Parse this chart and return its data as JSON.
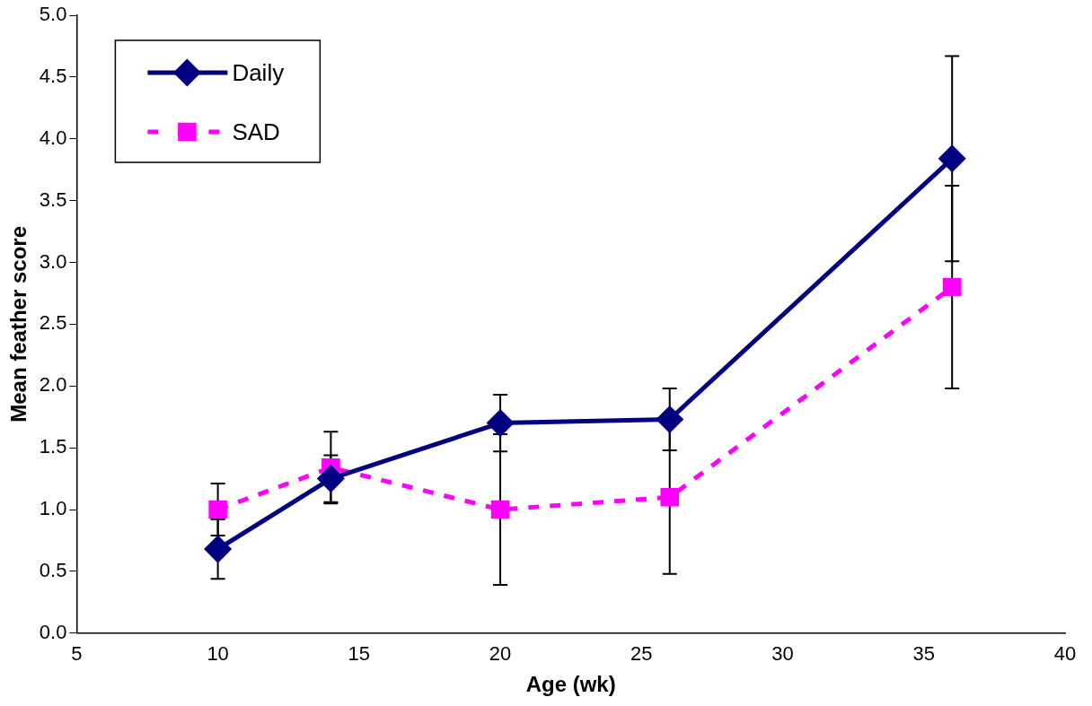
{
  "chart_data": {
    "type": "line",
    "xlabel": "Age (wk)",
    "ylabel": "Mean feather score",
    "x": [
      10,
      14,
      20,
      26,
      36
    ],
    "series": [
      {
        "name": "Daily",
        "color": "#000080",
        "values": [
          0.68,
          1.25,
          1.7,
          1.73,
          3.84
        ],
        "errors": [
          0.24,
          0.19,
          0.23,
          0.25,
          0.83
        ],
        "marker": "diamond",
        "line_style": "solid"
      },
      {
        "name": "SAD",
        "color": "#ff00ff",
        "values": [
          1.0,
          1.34,
          1.0,
          1.1,
          2.8
        ],
        "errors": [
          0.21,
          0.29,
          0.61,
          0.62,
          0.82
        ],
        "marker": "square",
        "line_style": "dashed"
      }
    ],
    "xlim": [
      5,
      40
    ],
    "xticks": [
      5,
      10,
      15,
      20,
      25,
      30,
      35,
      40
    ],
    "ylim": [
      0,
      5
    ],
    "yticks": [
      {
        "value": 0,
        "label": "0.0"
      },
      {
        "value": 0.5,
        "label": "0.5"
      },
      {
        "value": 1,
        "label": "1.0"
      },
      {
        "value": 1.5,
        "label": "1.5"
      },
      {
        "value": 2,
        "label": "2.0"
      },
      {
        "value": 2.5,
        "label": "2.5"
      },
      {
        "value": 3,
        "label": "3.0"
      },
      {
        "value": 3.5,
        "label": "3.5"
      },
      {
        "value": 4,
        "label": "4.0"
      },
      {
        "value": 4.5,
        "label": "4.5"
      },
      {
        "value": 5,
        "label": "5.0"
      }
    ],
    "grid": false,
    "legend": "top left"
  }
}
